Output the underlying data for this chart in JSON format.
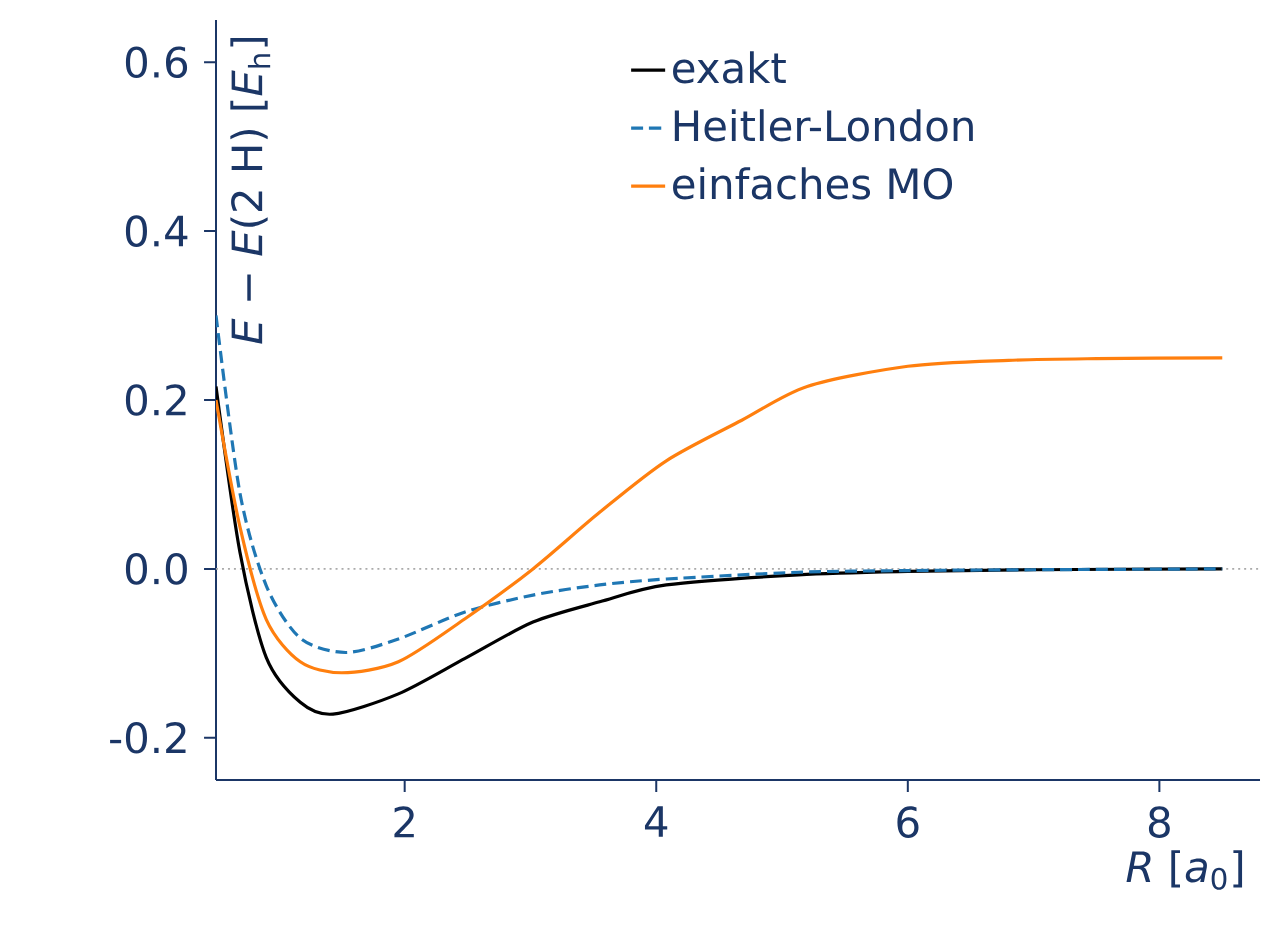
{
  "chart_data": {
    "type": "line",
    "xlabel": "*R* [*a*$_{0}$]",
    "ylabel": "*E* − *E*(2 H) [*E*$_{h}$]",
    "xlim": [
      0.5,
      8.8
    ],
    "ylim": [
      -0.25,
      0.65
    ],
    "xticks": [
      2,
      4,
      6,
      8
    ],
    "yticks": [
      -0.2,
      {
        "value": 0.0,
        "label": "0.0"
      },
      0.2,
      0.4,
      0.6
    ],
    "grid": false,
    "legend": "top right",
    "ref_lines": [
      {
        "axis": "y",
        "value": 0,
        "color": "#aaaaaa",
        "line_style": "dotted"
      }
    ],
    "series": [
      {
        "name": "exakt",
        "color": "#000000",
        "line_style": "solid",
        "x": [
          0.5,
          0.69,
          0.9,
          1.17,
          1.43,
          1.95,
          2.48,
          3.02,
          3.55,
          4.08,
          5.13,
          6.0,
          7.0,
          8.5
        ],
        "values": [
          0.216,
          0.02,
          -0.105,
          -0.158,
          -0.172,
          -0.148,
          -0.106,
          -0.063,
          -0.039,
          -0.019,
          -0.007,
          -0.003,
          -0.001,
          0.0
        ]
      },
      {
        "name": "Heitler-London",
        "color": "#1f77b4",
        "line_style": "dashed",
        "x": [
          0.5,
          0.69,
          0.9,
          1.17,
          1.53,
          1.95,
          2.48,
          3.02,
          3.55,
          4.08,
          5.13,
          6.0,
          7.0,
          8.5
        ],
        "values": [
          0.3,
          0.09,
          -0.02,
          -0.082,
          -0.099,
          -0.083,
          -0.051,
          -0.031,
          -0.019,
          -0.012,
          -0.004,
          -0.002,
          -0.001,
          0.0
        ]
      },
      {
        "name": "einfaches MO",
        "color": "#ff7f0e",
        "line_style": "solid",
        "x": [
          0.5,
          0.69,
          0.9,
          1.17,
          1.5,
          1.95,
          2.48,
          3.02,
          3.55,
          4.08,
          4.68,
          5.2,
          6.0,
          6.8,
          7.5,
          8.5
        ],
        "values": [
          0.2,
          0.05,
          -0.06,
          -0.11,
          -0.123,
          -0.11,
          -0.059,
          0.0,
          0.067,
          0.128,
          0.176,
          0.216,
          0.24,
          0.247,
          0.249,
          0.25
        ]
      }
    ]
  }
}
